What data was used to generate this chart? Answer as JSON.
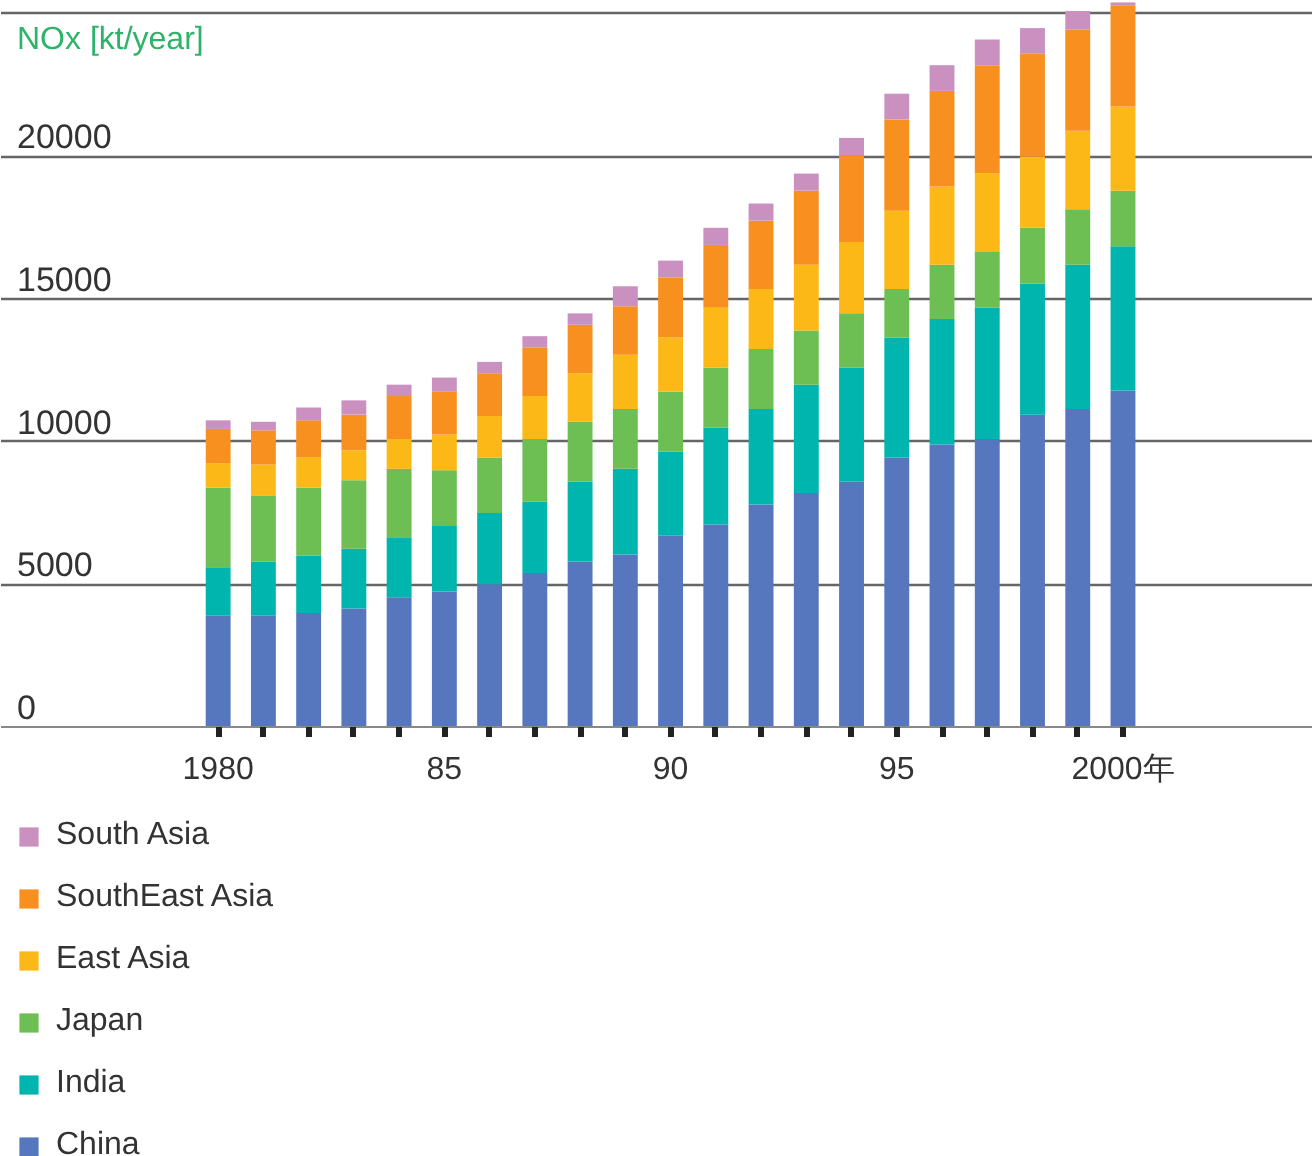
{
  "chart_data": {
    "type": "bar",
    "stacked": true,
    "ylabel": "NOx [kt/year]",
    "x": [
      1980,
      1981,
      1982,
      1983,
      1984,
      1985,
      1986,
      1987,
      1988,
      1989,
      1990,
      1991,
      1992,
      1993,
      1994,
      1995,
      1996,
      1997,
      1998,
      1999,
      2000
    ],
    "xlim": [
      1975.2,
      2004.2
    ],
    "xticks": [
      1980,
      {
        "value": 1981,
        "label": null
      },
      {
        "value": 1982,
        "label": null
      },
      {
        "value": 1983,
        "label": null
      },
      {
        "value": 1984,
        "label": null
      },
      {
        "value": 1985,
        "label": "85"
      },
      {
        "value": 1986,
        "label": null
      },
      {
        "value": 1987,
        "label": null
      },
      {
        "value": 1988,
        "label": null
      },
      {
        "value": 1989,
        "label": null
      },
      {
        "value": 1990,
        "label": "90"
      },
      {
        "value": 1991,
        "label": null
      },
      {
        "value": 1992,
        "label": null
      },
      {
        "value": 1993,
        "label": null
      },
      {
        "value": 1994,
        "label": null
      },
      {
        "value": 1995,
        "label": "95"
      },
      {
        "value": 1996,
        "label": null
      },
      {
        "value": 1997,
        "label": null
      },
      {
        "value": 1998,
        "label": null
      },
      {
        "value": 1999,
        "label": null
      },
      {
        "value": 2000,
        "label": "2000年"
      }
    ],
    "ylim": [
      0,
      25450
    ],
    "yticks": [
      0,
      5000,
      10000,
      15000,
      20000,
      {
        "value": 25000,
        "label": null
      }
    ],
    "grid": "y",
    "legend": "bottom",
    "series": [
      {
        "name": "China",
        "color": "#5677bd",
        "values": [
          3900,
          3900,
          4000,
          4150,
          4550,
          4750,
          5000,
          5400,
          5800,
          6050,
          6700,
          7100,
          7800,
          8200,
          8600,
          9450,
          9900,
          10100,
          10950,
          11150,
          11800
        ]
      },
      {
        "name": "India",
        "color": "#00b5ad",
        "values": [
          1700,
          1900,
          2000,
          2100,
          2100,
          2300,
          2500,
          2500,
          2800,
          3000,
          2950,
          3400,
          3350,
          3800,
          4000,
          4200,
          4400,
          4600,
          4600,
          5050,
          5050
        ]
      },
      {
        "name": "Japan",
        "color": "#6dbe53",
        "values": [
          2800,
          2300,
          2400,
          2400,
          2400,
          1950,
          1950,
          2200,
          2100,
          2100,
          2100,
          2100,
          2100,
          1900,
          1900,
          1700,
          1900,
          1950,
          1950,
          1950,
          1950
        ]
      },
      {
        "name": "East Asia",
        "color": "#fbb817",
        "values": [
          850,
          1100,
          1050,
          1050,
          1050,
          1250,
          1450,
          1500,
          1700,
          1900,
          1900,
          2100,
          2100,
          2300,
          2500,
          2750,
          2750,
          2750,
          2500,
          2750,
          2950
        ]
      },
      {
        "name": "SouthEast Asia",
        "color": "#f7901e",
        "values": [
          1200,
          1200,
          1300,
          1250,
          1500,
          1500,
          1500,
          1700,
          1700,
          1700,
          2100,
          2200,
          2400,
          2600,
          3050,
          3200,
          3350,
          3800,
          3600,
          3550,
          3550
        ]
      },
      {
        "name": "South Asia",
        "color": "#c990c0",
        "values": [
          300,
          300,
          450,
          500,
          400,
          500,
          400,
          400,
          400,
          700,
          600,
          600,
          600,
          600,
          600,
          900,
          900,
          900,
          900,
          650,
          100
        ]
      }
    ]
  }
}
